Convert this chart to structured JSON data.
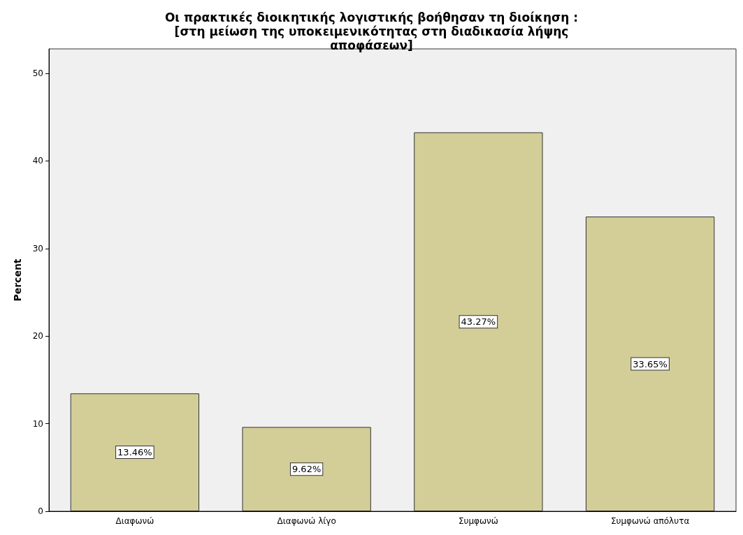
{
  "chart_data": {
    "type": "bar",
    "title": "Οι πρακτικές διοικητικής λογιστικής βοήθησαν τη διοίκηση : [στη μείωση της υποκειμενικότητας στη διαδικασία λήψης αποφάσεων]",
    "ylabel": "Percent",
    "categories": [
      "Διαφωνώ",
      "Διαφωνώ λίγο",
      "Συμφωνώ",
      "Συμφωνώ απόλυτα"
    ],
    "values": [
      13.46,
      9.62,
      43.27,
      33.65
    ],
    "value_labels": [
      "13.46%",
      "9.62%",
      "43.27%",
      "33.65%"
    ],
    "color": "#d3ce98",
    "ylim": [
      0,
      52.8
    ],
    "yticks": [
      0,
      10,
      20,
      30,
      40,
      50
    ],
    "grid": false
  }
}
